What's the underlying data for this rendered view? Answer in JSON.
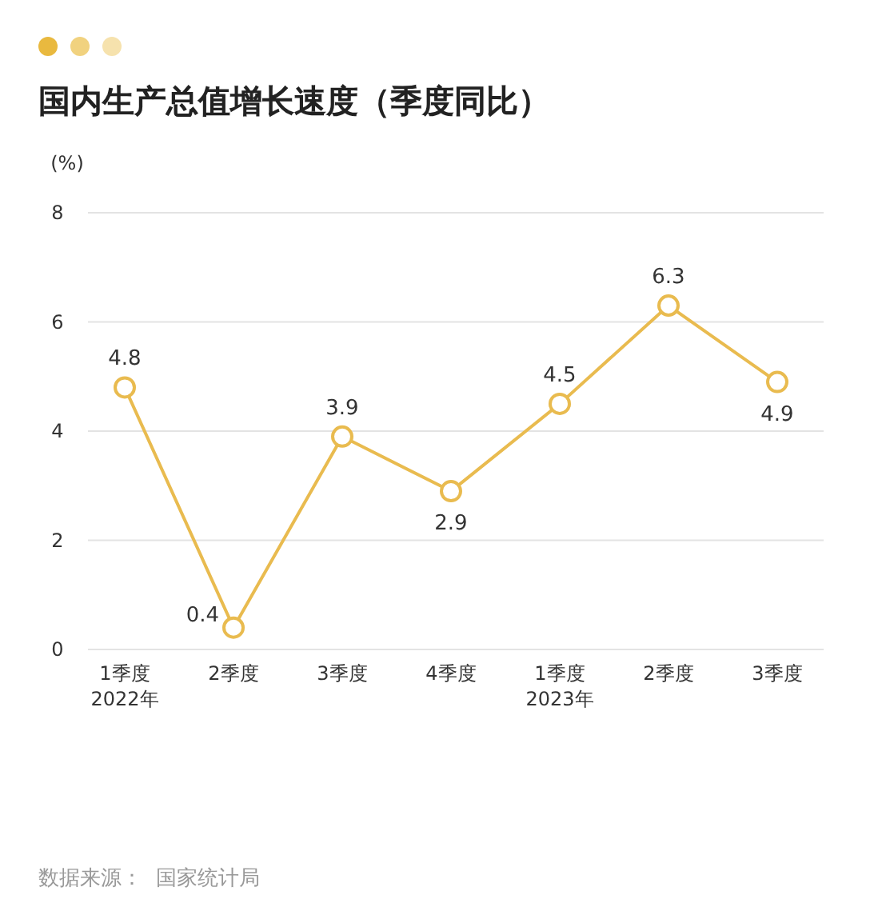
{
  "chart_data": {
    "type": "line",
    "title": "国内生产总值增长速度（季度同比）",
    "ylabel": "(%)",
    "categories": [
      "1季度\n2022年",
      "2季度",
      "3季度",
      "4季度",
      "1季度\n2023年",
      "2季度",
      "3季度"
    ],
    "series": [
      {
        "color": "#e9bb4f",
        "values": [
          4.8,
          0.4,
          3.9,
          2.9,
          4.5,
          6.3,
          4.9
        ]
      }
    ],
    "ylim": [
      0,
      8
    ],
    "yticks": [
      0,
      2,
      4,
      6,
      8
    ],
    "grid": "y",
    "marker": "circle",
    "line_style": "solid",
    "data_labels": true,
    "annotations": [
      "数据来源：  国家统计局"
    ]
  }
}
